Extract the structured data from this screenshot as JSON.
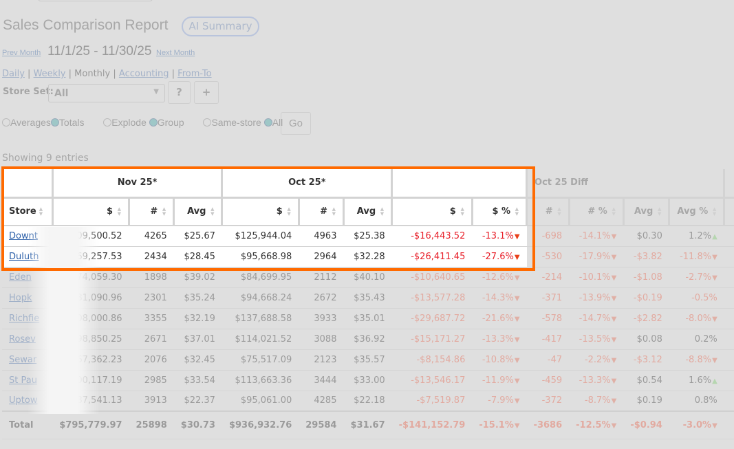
{
  "header": {
    "title": "Sales Comparison Report",
    "ai_summary": "AI Summary"
  },
  "nav": {
    "prev": "Prev Month",
    "range": "11/1/25 - 11/30/25",
    "next": "Next Month"
  },
  "period": {
    "daily": "Daily",
    "weekly": "Weekly",
    "monthly": "Monthly",
    "accounting": "Accounting",
    "fromto": "From-To",
    "sep": "|"
  },
  "storeset": {
    "label": "Store Set:",
    "value": "All",
    "help": "?",
    "add": "+"
  },
  "options": {
    "averages": "Averages",
    "totals": "Totals",
    "explode": "Explode",
    "group": "Group",
    "samestore": "Same-store",
    "all": "All",
    "go": "Go",
    "selected": [
      "totals",
      "group",
      "all"
    ]
  },
  "showing": "Showing 9 entries",
  "table": {
    "groups": [
      "",
      "Nov 25*",
      "Oct 25*",
      "",
      "Oct 25 Diff"
    ],
    "columns": [
      "Store",
      "$",
      "#",
      "Avg",
      "$",
      "#",
      "Avg",
      "$",
      "$ %",
      "#",
      "# %",
      "Avg",
      "Avg %"
    ],
    "rows": [
      [
        "Downt",
        "$109,500.52",
        "4265",
        "$25.67",
        "$125,944.04",
        "4963",
        "$25.38",
        "-$16,443.52",
        "-13.1%",
        "-698",
        "-14.1%",
        "$0.30",
        "1.2%"
      ],
      [
        "Duluth",
        "$69,257.53",
        "2434",
        "$28.45",
        "$95,668.98",
        "2964",
        "$32.28",
        "-$26,411.45",
        "-27.6%",
        "-530",
        "-17.9%",
        "-$3.82",
        "-11.8%"
      ],
      [
        "Eden",
        "$74,059.30",
        "1898",
        "$39.02",
        "$84,699.95",
        "2112",
        "$40.10",
        "-$10,640.65",
        "-12.6%",
        "-214",
        "-10.1%",
        "-$1.08",
        "-2.7%"
      ],
      [
        "Hopk",
        "$81,090.96",
        "2301",
        "$35.24",
        "$94,668.24",
        "2672",
        "$35.43",
        "-$13,577.28",
        "-14.3%",
        "-371",
        "-13.9%",
        "-$0.19",
        "-0.5%"
      ],
      [
        "Richfie",
        "$108,000.86",
        "3355",
        "$32.19",
        "$137,688.58",
        "3933",
        "$35.01",
        "-$29,687.72",
        "-21.6%",
        "-578",
        "-14.7%",
        "-$2.82",
        "-8.0%"
      ],
      [
        "Rosev",
        "$98,850.25",
        "2671",
        "$37.01",
        "$114,021.52",
        "3088",
        "$36.92",
        "-$15,171.27",
        "-13.3%",
        "-417",
        "-13.5%",
        "$0.08",
        "0.2%"
      ],
      [
        "Sewar",
        "$67,362.23",
        "2076",
        "$32.45",
        "$75,517.09",
        "2123",
        "$35.57",
        "-$8,154.86",
        "-10.8%",
        "-47",
        "-2.2%",
        "-$3.12",
        "-8.8%"
      ],
      [
        "St Pau",
        "$100,117.19",
        "2985",
        "$33.54",
        "$113,663.36",
        "3444",
        "$33.00",
        "-$13,546.17",
        "-11.9%",
        "-459",
        "-13.3%",
        "$0.54",
        "1.6%"
      ],
      [
        "Uptow",
        "$87,541.13",
        "3913",
        "$22.37",
        "$95,061.00",
        "4285",
        "$22.18",
        "-$7,519.87",
        "-7.9%",
        "-372",
        "-8.7%",
        "$0.19",
        "0.8%"
      ]
    ],
    "total": [
      "Total",
      "$795,779.97",
      "25898",
      "$30.73",
      "$936,932.76",
      "29584",
      "$31.67",
      "-$141,152.79",
      "-15.1%",
      "-3686",
      "-12.5%",
      "-$0.94",
      "-3.0%"
    ]
  },
  "colors": {
    "highlight": "#ff6a00",
    "negative": "#e8202a",
    "link": "#2b5fa8",
    "up": "#7cc06e"
  }
}
